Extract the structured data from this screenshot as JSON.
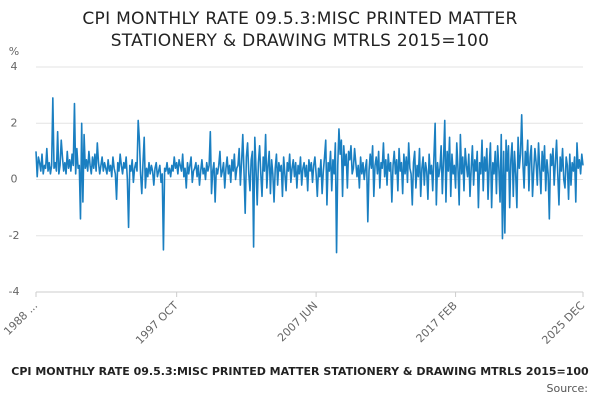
{
  "chart_data": {
    "type": "line",
    "title": "CPI MONTHLY RATE 09.5.3:MISC PRINTED MATTER STATIONERY & DRAWING MTRLS 2015=100",
    "source": "Source:",
    "y_label": "%",
    "ylim": [
      -4,
      4
    ],
    "yticks": [
      -4,
      -2,
      0,
      2,
      4
    ],
    "grid": true,
    "categories": [
      "1988 ...",
      null,
      null,
      null,
      null,
      null,
      null,
      null,
      null,
      null,
      null,
      null,
      null,
      null,
      null,
      null,
      null,
      null,
      null,
      null,
      null,
      null,
      null,
      null,
      null,
      null,
      null,
      null,
      null,
      null,
      null,
      null,
      null,
      null,
      null,
      null,
      null,
      null,
      null,
      null,
      null,
      null,
      null,
      null,
      null,
      null,
      null,
      null,
      null,
      null,
      null,
      null,
      null,
      null,
      null,
      null,
      null,
      null,
      null,
      null,
      null,
      null,
      null,
      null,
      null,
      null,
      null,
      null,
      null,
      null,
      null,
      null,
      null,
      null,
      null,
      null,
      null,
      null,
      null,
      null,
      null,
      null,
      null,
      null,
      null,
      null,
      null,
      null,
      null,
      null,
      null,
      null,
      null,
      null,
      null,
      null,
      null,
      null,
      null,
      null,
      null,
      null,
      null,
      null,
      null,
      null,
      null,
      null,
      null,
      null,
      null,
      null,
      null,
      null,
      null,
      null,
      null,
      "1997 OCT",
      null,
      null,
      null,
      null,
      null,
      null,
      null,
      null,
      null,
      null,
      null,
      null,
      null,
      null,
      null,
      null,
      null,
      null,
      null,
      null,
      null,
      null,
      null,
      null,
      null,
      null,
      null,
      null,
      null,
      null,
      null,
      null,
      null,
      null,
      null,
      null,
      null,
      null,
      null,
      null,
      null,
      null,
      null,
      null,
      null,
      null,
      null,
      null,
      null,
      null,
      null,
      null,
      null,
      null,
      null,
      null,
      null,
      null,
      null,
      null,
      null,
      null,
      null,
      null,
      null,
      null,
      null,
      null,
      null,
      null,
      null,
      null,
      null,
      null,
      null,
      null,
      null,
      null,
      null,
      null,
      null,
      null,
      null,
      null,
      null,
      null,
      null,
      null,
      null,
      null,
      null,
      null,
      null,
      null,
      null,
      null,
      null,
      null,
      null,
      null,
      null,
      null,
      null,
      null,
      null,
      null,
      null,
      null,
      null,
      null,
      null,
      null,
      null,
      null,
      null,
      "2007 JUN",
      null,
      null,
      null,
      null,
      null,
      null,
      null,
      null,
      null,
      null,
      null,
      null,
      null,
      null,
      null,
      null,
      null,
      null,
      null,
      null,
      null,
      null,
      null,
      null,
      null,
      null,
      null,
      null,
      null,
      null,
      null,
      null,
      null,
      null,
      null,
      null,
      null,
      null,
      null,
      null,
      null,
      null,
      null,
      null,
      null,
      null,
      null,
      null,
      null,
      null,
      null,
      null,
      null,
      null,
      null,
      null,
      null,
      null,
      null,
      null,
      null,
      null,
      null,
      null,
      null,
      null,
      null,
      null,
      null,
      null,
      null,
      null,
      null,
      null,
      null,
      null,
      null,
      null,
      null,
      null,
      null,
      null,
      null,
      null,
      null,
      null,
      null,
      null,
      null,
      null,
      null,
      null,
      null,
      null,
      null,
      null,
      null,
      null,
      null,
      null,
      null,
      null,
      null,
      null,
      null,
      null,
      null,
      null,
      null,
      null,
      null,
      null,
      null,
      null,
      null,
      "2017 FEB",
      null,
      null,
      null,
      null,
      null,
      null,
      null,
      null,
      null,
      null,
      null,
      null,
      null,
      null,
      null,
      null,
      null,
      null,
      null,
      null,
      null,
      null,
      null,
      null,
      null,
      null,
      null,
      null,
      null,
      null,
      null,
      null,
      null,
      null,
      null,
      null,
      null,
      null,
      null,
      null,
      null,
      null,
      null,
      null,
      null,
      null,
      null,
      null,
      null,
      null,
      null,
      null,
      null,
      null,
      null,
      null,
      null,
      null,
      null,
      null,
      null,
      null,
      null,
      null,
      null,
      null,
      null,
      null,
      null,
      null,
      null,
      null,
      null,
      null,
      null,
      null,
      null,
      null,
      null,
      null,
      null,
      null,
      null,
      null,
      null,
      null,
      null,
      null,
      null,
      null,
      null,
      null,
      null,
      null,
      null,
      null,
      null,
      null,
      null,
      null,
      null,
      null,
      null,
      null,
      null,
      "2025 DEC"
    ],
    "series": [
      {
        "color": "#1a7fc1",
        "values": [
          1.0,
          0.1,
          0.8,
          0.6,
          0.3,
          0.9,
          0.2,
          0.5,
          0.4,
          1.1,
          0.3,
          0.6,
          0.2,
          0.5,
          2.9,
          0.4,
          0.6,
          0.3,
          1.7,
          0.2,
          0.5,
          1.4,
          0.8,
          0.3,
          0.6,
          0.2,
          1.0,
          0.4,
          0.7,
          0.3,
          0.9,
          0.5,
          2.7,
          0.2,
          1.1,
          0.4,
          0.5,
          -1.4,
          2.0,
          -0.8,
          1.6,
          0.4,
          0.7,
          0.3,
          1.0,
          0.5,
          0.2,
          0.8,
          0.4,
          0.9,
          0.3,
          1.3,
          0.6,
          0.2,
          0.5,
          0.8,
          0.3,
          0.6,
          0.4,
          0.2,
          0.7,
          0.3,
          0.5,
          0.1,
          0.8,
          0.4,
          0.2,
          -0.7,
          0.6,
          0.3,
          0.9,
          0.5,
          0.2,
          0.6,
          0.4,
          0.8,
          0.0,
          -1.7,
          0.5,
          0.3,
          0.7,
          -0.1,
          0.4,
          0.6,
          0.3,
          2.1,
          1.4,
          0.2,
          -0.5,
          0.6,
          1.5,
          -0.3,
          0.4,
          0.1,
          0.6,
          0.2,
          0.5,
          0.3,
          -0.2,
          0.4,
          0.6,
          0.1,
          0.3,
          0.5,
          -0.1,
          0.2,
          -2.5,
          0.4,
          0.3,
          0.6,
          0.2,
          0.4,
          0.1,
          0.5,
          0.3,
          0.8,
          0.4,
          0.6,
          0.2,
          0.7,
          0.5,
          0.3,
          0.9,
          0.1,
          0.4,
          -0.3,
          0.6,
          0.2,
          0.5,
          0.8,
          -0.1,
          0.3,
          0.4,
          0.6,
          0.1,
          0.5,
          -0.2,
          0.3,
          0.7,
          0.2,
          0.4,
          0.0,
          0.6,
          0.3,
          0.5,
          1.7,
          -0.5,
          0.3,
          0.6,
          -0.8,
          0.4,
          0.2,
          0.5,
          1.0,
          0.1,
          0.3,
          0.6,
          -0.3,
          0.4,
          0.8,
          0.2,
          0.5,
          -0.1,
          0.7,
          0.3,
          0.9,
          0.0,
          0.4,
          0.5,
          1.1,
          -0.2,
          0.6,
          1.6,
          0.3,
          -1.2,
          0.8,
          1.3,
          0.2,
          -0.4,
          0.7,
          1.0,
          -2.4,
          1.5,
          0.4,
          -0.9,
          0.6,
          1.2,
          0.2,
          -0.6,
          0.8,
          0.3,
          1.6,
          -0.3,
          0.5,
          1.0,
          -0.5,
          0.7,
          0.2,
          -0.8,
          0.4,
          0.9,
          -0.2,
          0.6,
          0.3,
          0.5,
          -0.6,
          0.8,
          0.2,
          -0.4,
          0.6,
          0.3,
          0.9,
          -0.1,
          0.4,
          0.7,
          0.1,
          0.6,
          -0.3,
          0.5,
          0.2,
          0.8,
          -0.2,
          0.4,
          0.6,
          0.1,
          0.5,
          -0.4,
          0.7,
          0.3,
          0.6,
          -0.1,
          0.5,
          0.8,
          0.2,
          -0.6,
          0.4,
          0.1,
          0.7,
          -0.5,
          0.3,
          0.8,
          1.4,
          -0.9,
          0.6,
          0.3,
          1.0,
          -0.4,
          0.7,
          0.2,
          1.3,
          -2.6,
          0.5,
          1.8,
          0.9,
          1.4,
          -0.6,
          1.2,
          0.5,
          0.9,
          -0.3,
          1.0,
          0.7,
          1.2,
          0.2,
          0.4,
          1.1,
          0.6,
          0.1,
          0.5,
          -0.3,
          0.8,
          0.2,
          0.6,
          0.0,
          0.4,
          0.7,
          -1.5,
          0.3,
          0.9,
          0.4,
          1.2,
          -0.6,
          0.5,
          0.8,
          0.2,
          1.0,
          -0.3,
          0.6,
          0.4,
          1.3,
          0.1,
          0.7,
          -0.2,
          0.9,
          0.3,
          0.6,
          -0.8,
          0.5,
          1.0,
          0.2,
          0.7,
          -0.4,
          1.1,
          0.3,
          0.6,
          -0.5,
          0.9,
          0.2,
          0.8,
          -0.1,
          1.3,
          0.4,
          0.2,
          -0.9,
          0.6,
          1.0,
          -0.3,
          0.5,
          0.1,
          1.1,
          -0.6,
          0.4,
          0.8,
          -0.2,
          0.6,
          0.3,
          -0.7,
          0.9,
          0.2,
          0.5,
          -0.4,
          0.8,
          2.0,
          -0.9,
          0.6,
          0.1,
          0.4,
          1.2,
          -0.5,
          0.7,
          2.1,
          -0.8,
          1.0,
          0.3,
          1.5,
          -0.6,
          0.9,
          0.2,
          0.5,
          -0.3,
          1.3,
          0.4,
          -0.9,
          1.6,
          0.2,
          0.8,
          -0.4,
          1.1,
          0.5,
          0.1,
          0.9,
          -0.6,
          0.4,
          1.2,
          -0.2,
          0.7,
          0.3,
          1.0,
          -1.0,
          0.6,
          0.2,
          1.4,
          -0.4,
          0.8,
          0.3,
          1.1,
          -0.7,
          0.5,
          1.3,
          -1.0,
          0.6,
          0.2,
          1.0,
          -0.5,
          1.2,
          0.4,
          -0.8,
          1.6,
          -2.1,
          1.0,
          -1.9,
          1.4,
          0.3,
          1.2,
          -1.0,
          0.7,
          1.3,
          -0.6,
          1.0,
          0.2,
          -1.0,
          1.5,
          0.4,
          0.9,
          2.3,
          0.6,
          -0.3,
          1.0,
          0.5,
          1.4,
          -0.4,
          0.8,
          1.2,
          -0.6,
          0.3,
          1.1,
          0.6,
          -0.2,
          1.3,
          0.4,
          -0.5,
          1.0,
          0.3,
          1.2,
          -0.4,
          0.7,
          0.2,
          -1.4,
          0.9,
          0.5,
          1.1,
          -0.2,
          0.6,
          1.4,
          0.2,
          -0.9,
          0.8,
          0.3,
          1.1,
          0.0,
          -0.3,
          0.8,
          0.5,
          -0.7,
          0.9,
          -0.2,
          0.6,
          0.3,
          0.8,
          -0.8,
          1.3,
          0.4,
          0.7,
          0.2,
          0.9,
          0.5
        ]
      }
    ]
  }
}
